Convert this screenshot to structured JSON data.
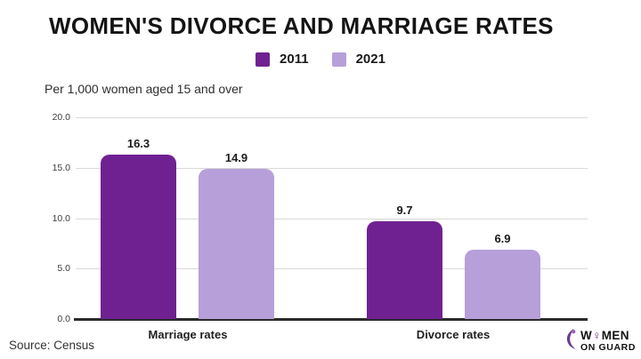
{
  "title": "WOMEN'S DIVORCE AND MARRIAGE RATES",
  "subtitle": "Per 1,000 women aged 15 and over",
  "source": "Source: Census",
  "colors": {
    "series_2011": "#6f2191",
    "series_2021": "#b79fd9",
    "baseline": "#2b2b2b",
    "gridline": "#d9d9d9"
  },
  "legend": {
    "items": [
      {
        "label": "2011",
        "color": "#6f2191"
      },
      {
        "label": "2021",
        "color": "#b79fd9"
      }
    ]
  },
  "chart_data": {
    "type": "bar",
    "categories": [
      "Marriage rates",
      "Divorce rates"
    ],
    "series": [
      {
        "name": "2011",
        "color": "#6f2191",
        "values": [
          16.3,
          9.7
        ]
      },
      {
        "name": "2021",
        "color": "#b79fd9",
        "values": [
          14.9,
          6.9
        ]
      }
    ],
    "title": "WOMEN'S DIVORCE AND MARRIAGE RATES",
    "subtitle": "Per 1,000 women aged 15 and over",
    "xlabel": "",
    "ylabel": "Per 1,000 women aged 15 and over",
    "ylim": [
      0,
      20
    ],
    "yticks": [
      "20.0",
      "15.0",
      "10.0",
      "5.0",
      "0.0"
    ],
    "grid": true,
    "legend_position": "top-center"
  },
  "logo": {
    "word1_pre": "W",
    "word1_symbol": "♀",
    "word1_post": "MEN",
    "word2": "ON GUARD"
  }
}
